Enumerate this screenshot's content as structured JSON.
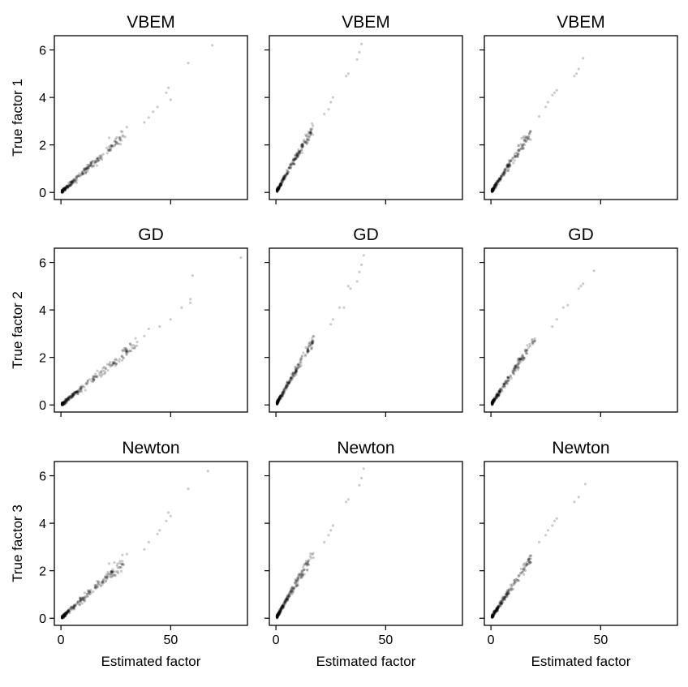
{
  "figure": {
    "column_titles_by_row": [
      "VBEM",
      "GD",
      "Newton"
    ],
    "row_ylabels": [
      "True factor 1",
      "True factor 2",
      "True factor 3"
    ],
    "xlabel": "Estimated factor"
  },
  "colors": {
    "point": "#000000",
    "axes": "#000000",
    "background": "#ffffff"
  },
  "chart_data": [
    {
      "type": "scatter",
      "panel": "row1-col1",
      "title": "VBEM",
      "xlabel": "",
      "ylabel": "True factor 1",
      "xlim": [
        -3,
        85
      ],
      "ylim": [
        -0.3,
        6.6
      ],
      "xticks": [
        0,
        50
      ],
      "yticks": [
        0,
        2,
        4,
        6
      ],
      "slope": 0.083,
      "xmax": 69,
      "points": [
        [
          58,
          5.45
        ],
        [
          69,
          6.2
        ],
        [
          48,
          4.2
        ],
        [
          49,
          4.4
        ],
        [
          50,
          3.9
        ],
        [
          44,
          3.6
        ],
        [
          42,
          3.4
        ],
        [
          40,
          3.15
        ],
        [
          38,
          2.95
        ],
        [
          30,
          2.75
        ],
        [
          28,
          2.55
        ],
        [
          22,
          2.3
        ],
        [
          25,
          2.25
        ]
      ]
    },
    {
      "type": "scatter",
      "panel": "row1-col2",
      "title": "VBEM",
      "xlabel": "",
      "ylabel": "",
      "xlim": [
        -3,
        85
      ],
      "ylim": [
        -0.3,
        6.6
      ],
      "xticks": [
        0,
        50
      ],
      "yticks": [
        0,
        2,
        4,
        6
      ],
      "slope": 0.16,
      "xmax": 39,
      "points": [
        [
          39,
          6.25
        ],
        [
          38,
          5.9
        ],
        [
          37,
          5.6
        ],
        [
          33,
          5.0
        ],
        [
          32,
          4.9
        ],
        [
          26,
          4.0
        ],
        [
          25,
          3.8
        ],
        [
          24,
          3.5
        ],
        [
          22,
          3.3
        ]
      ]
    },
    {
      "type": "scatter",
      "panel": "row1-col3",
      "title": "VBEM",
      "xlabel": "",
      "ylabel": "",
      "xlim": [
        -3,
        85
      ],
      "ylim": [
        -0.3,
        6.6
      ],
      "xticks": [
        0,
        50
      ],
      "yticks": [
        0,
        2,
        4,
        6
      ],
      "slope": 0.14,
      "xmax": 42,
      "points": [
        [
          42,
          5.65
        ],
        [
          40,
          5.2
        ],
        [
          39,
          5.0
        ],
        [
          38,
          4.9
        ],
        [
          30,
          4.3
        ],
        [
          29,
          4.2
        ],
        [
          28,
          4.1
        ],
        [
          26,
          3.8
        ],
        [
          25,
          3.6
        ],
        [
          22,
          3.2
        ]
      ]
    },
    {
      "type": "scatter",
      "panel": "row2-col1",
      "title": "GD",
      "xlabel": "",
      "ylabel": "True factor 2",
      "xlim": [
        -3,
        85
      ],
      "ylim": [
        -0.3,
        6.6
      ],
      "xticks": [
        0,
        50
      ],
      "yticks": [
        0,
        2,
        4,
        6
      ],
      "slope": 0.075,
      "xmax": 82,
      "points": [
        [
          82,
          6.2
        ],
        [
          60,
          5.45
        ],
        [
          59,
          4.45
        ],
        [
          59,
          4.3
        ],
        [
          55,
          4.1
        ],
        [
          50,
          3.6
        ],
        [
          45,
          3.3
        ],
        [
          40,
          3.2
        ],
        [
          38,
          2.9
        ],
        [
          34,
          2.8
        ],
        [
          32,
          2.5
        ],
        [
          28,
          2.3
        ]
      ]
    },
    {
      "type": "scatter",
      "panel": "row2-col2",
      "title": "GD",
      "xlabel": "",
      "ylabel": "",
      "xlim": [
        -3,
        85
      ],
      "ylim": [
        -0.3,
        6.6
      ],
      "xticks": [
        0,
        50
      ],
      "yticks": [
        0,
        2,
        4,
        6
      ],
      "slope": 0.16,
      "xmax": 40,
      "points": [
        [
          40,
          6.3
        ],
        [
          39,
          5.9
        ],
        [
          38,
          5.6
        ],
        [
          37,
          5.2
        ],
        [
          34,
          4.9
        ],
        [
          33,
          5.0
        ],
        [
          31,
          4.1
        ],
        [
          29,
          4.1
        ],
        [
          26,
          3.6
        ],
        [
          25,
          3.4
        ]
      ]
    },
    {
      "type": "scatter",
      "panel": "row2-col3",
      "title": "GD",
      "xlabel": "",
      "ylabel": "",
      "xlim": [
        -3,
        85
      ],
      "ylim": [
        -0.3,
        6.6
      ],
      "xticks": [
        0,
        50
      ],
      "yticks": [
        0,
        2,
        4,
        6
      ],
      "slope": 0.14,
      "xmax": 47,
      "points": [
        [
          47,
          5.65
        ],
        [
          42,
          5.1
        ],
        [
          41,
          5.0
        ],
        [
          40,
          4.9
        ],
        [
          35,
          4.2
        ],
        [
          33,
          4.1
        ],
        [
          30,
          3.6
        ],
        [
          28,
          3.3
        ]
      ]
    },
    {
      "type": "scatter",
      "panel": "row3-col1",
      "title": "Newton",
      "xlabel": "Estimated factor",
      "ylabel": "True factor 3",
      "xlim": [
        -3,
        85
      ],
      "ylim": [
        -0.3,
        6.6
      ],
      "xticks": [
        0,
        50
      ],
      "yticks": [
        0,
        2,
        4,
        6
      ],
      "slope": 0.083,
      "xmax": 67,
      "points": [
        [
          67,
          6.2
        ],
        [
          58,
          5.45
        ],
        [
          49,
          4.45
        ],
        [
          50,
          4.3
        ],
        [
          48,
          4.1
        ],
        [
          45,
          3.7
        ],
        [
          44,
          3.55
        ],
        [
          40,
          3.2
        ],
        [
          38,
          2.9
        ],
        [
          30,
          2.7
        ],
        [
          28,
          2.4
        ],
        [
          22,
          2.3
        ]
      ]
    },
    {
      "type": "scatter",
      "panel": "row3-col2",
      "title": "Newton",
      "xlabel": "Estimated factor",
      "ylabel": "",
      "xlim": [
        -3,
        85
      ],
      "ylim": [
        -0.3,
        6.6
      ],
      "xticks": [
        0,
        50
      ],
      "yticks": [
        0,
        2,
        4,
        6
      ],
      "slope": 0.16,
      "xmax": 40,
      "points": [
        [
          40,
          6.3
        ],
        [
          39,
          5.9
        ],
        [
          38,
          5.6
        ],
        [
          33,
          5.0
        ],
        [
          32,
          4.9
        ],
        [
          26,
          3.9
        ],
        [
          25,
          3.7
        ],
        [
          24,
          3.5
        ],
        [
          22,
          3.2
        ]
      ]
    },
    {
      "type": "scatter",
      "panel": "row3-col3",
      "title": "Newton",
      "xlabel": "Estimated factor",
      "ylabel": "",
      "xlim": [
        -3,
        85
      ],
      "ylim": [
        -0.3,
        6.6
      ],
      "xticks": [
        0,
        50
      ],
      "yticks": [
        0,
        2,
        4,
        6
      ],
      "slope": 0.14,
      "xmax": 43,
      "points": [
        [
          43,
          5.65
        ],
        [
          40,
          5.1
        ],
        [
          38,
          4.9
        ],
        [
          30,
          4.2
        ],
        [
          29,
          4.1
        ],
        [
          28,
          3.9
        ],
        [
          26,
          3.7
        ],
        [
          25,
          3.5
        ],
        [
          22,
          3.2
        ]
      ]
    }
  ]
}
